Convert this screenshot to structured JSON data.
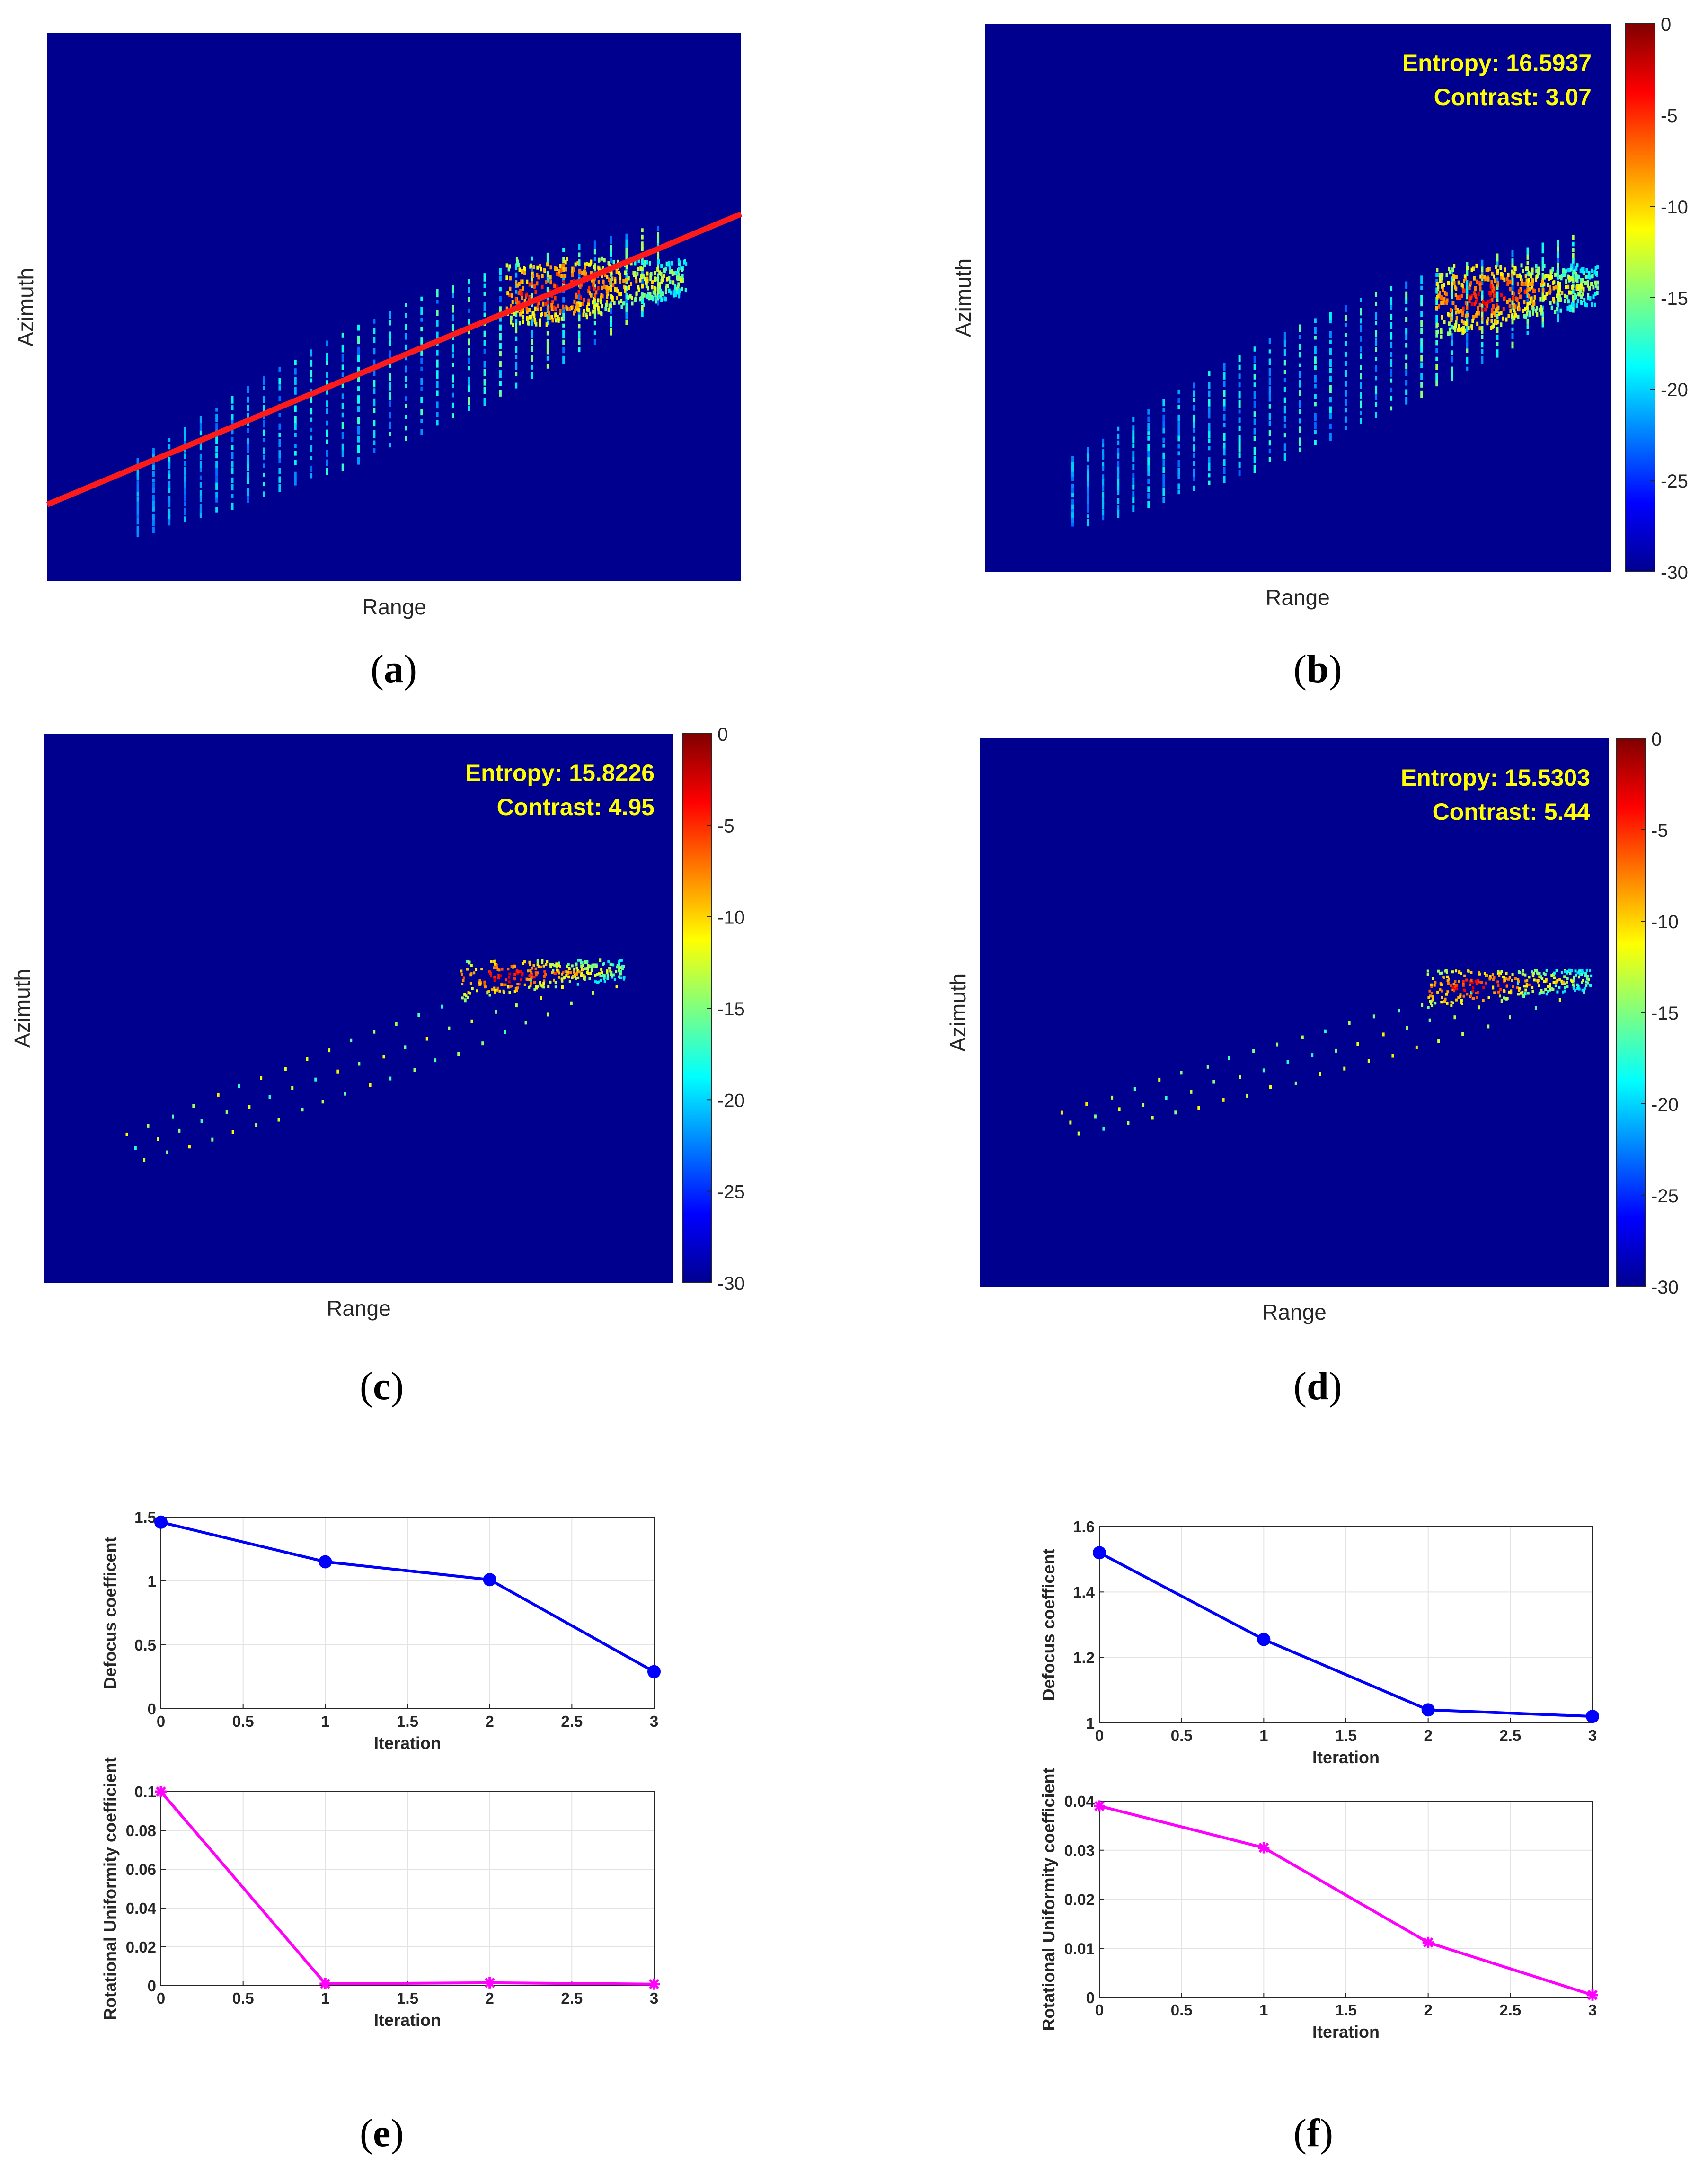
{
  "images": {
    "a": {
      "xlabel": "Range",
      "ylabel": "Azimuth",
      "label": "(a)",
      "label_letter": "a"
    },
    "b": {
      "xlabel": "Range",
      "ylabel": "Azimuth",
      "label": "(b)",
      "label_letter": "b",
      "entropy_text": "Entropy: 16.5937",
      "contrast_text": "Contrast: 3.07"
    },
    "c": {
      "xlabel": "Range",
      "ylabel": "Azimuth",
      "label": "(c)",
      "label_letter": "c",
      "entropy_text": "Entropy: 15.8226",
      "contrast_text": "Contrast: 4.95"
    },
    "d": {
      "xlabel": "Range",
      "ylabel": "Azimuth",
      "label": "(d)",
      "label_letter": "d",
      "entropy_text": "Entropy: 15.5303",
      "contrast_text": "Contrast: 5.44"
    }
  },
  "colorbar": {
    "ticks": [
      "0",
      "-5",
      "-10",
      "-15",
      "-20",
      "-25",
      "-30"
    ],
    "range": [
      -30,
      0
    ]
  },
  "colors": {
    "image_bg": "#00008f",
    "annot_text": "#ffff00",
    "red_line": "#ff1a1a",
    "blue_series": "#0000ff",
    "magenta_series": "#ff00ff",
    "grid": "#e3e3e3"
  },
  "chart_data": [
    {
      "type": "line",
      "panel": "e",
      "title": "",
      "xlabel": "Iteration",
      "ylabel": "Defocus coefficent",
      "x": [
        0,
        1,
        2,
        3
      ],
      "series": [
        {
          "name": "Defocus coefficent",
          "values": [
            1.46,
            1.15,
            1.01,
            0.29
          ]
        }
      ],
      "xlim": [
        0,
        3
      ],
      "ylim": [
        0,
        1.5
      ],
      "xticks": [
        "0",
        "0.5",
        "1",
        "1.5",
        "2",
        "2.5",
        "3"
      ],
      "yticks": [
        "0",
        "0.5",
        "1",
        "1.5"
      ],
      "grid": true,
      "label": "(e)",
      "label_letter": "e"
    },
    {
      "type": "line",
      "panel": "e",
      "title": "",
      "xlabel": "Iteration",
      "ylabel": "Rotational Uniformity coefficient",
      "x": [
        0,
        1,
        2,
        3
      ],
      "series": [
        {
          "name": "Rotational Uniformity coefficient",
          "values": [
            0.1,
            0.001,
            0.0015,
            0.0008
          ]
        }
      ],
      "xlim": [
        0,
        3
      ],
      "ylim": [
        0,
        0.1
      ],
      "xticks": [
        "0",
        "0.5",
        "1",
        "1.5",
        "2",
        "2.5",
        "3"
      ],
      "yticks": [
        "0",
        "0.02",
        "0.04",
        "0.06",
        "0.08",
        "0.1"
      ],
      "grid": true
    },
    {
      "type": "line",
      "panel": "f",
      "title": "",
      "xlabel": "Iteration",
      "ylabel": "Defocus coefficent",
      "x": [
        0,
        1,
        2,
        3
      ],
      "series": [
        {
          "name": "Defocus coefficent",
          "values": [
            1.52,
            1.255,
            1.04,
            1.02
          ]
        }
      ],
      "xlim": [
        0,
        3
      ],
      "ylim": [
        1,
        1.6
      ],
      "xticks": [
        "0",
        "0.5",
        "1",
        "1.5",
        "2",
        "2.5",
        "3"
      ],
      "yticks": [
        "1",
        "1.2",
        "1.4",
        "1.6"
      ],
      "grid": true,
      "label": "(f)",
      "label_letter": "f"
    },
    {
      "type": "line",
      "panel": "f",
      "title": "",
      "xlabel": "Iteration",
      "ylabel": "Rotational Uniformity coefficient",
      "x": [
        0,
        1,
        2,
        3
      ],
      "series": [
        {
          "name": "Rotational Uniformity coefficient",
          "values": [
            0.039,
            0.0305,
            0.0112,
            0.0005
          ]
        }
      ],
      "xlim": [
        0,
        3
      ],
      "ylim": [
        0,
        0.04
      ],
      "xticks": [
        "0",
        "0.5",
        "1",
        "1.5",
        "2",
        "2.5",
        "3"
      ],
      "yticks": [
        "0",
        "0.01",
        "0.02",
        "0.03",
        "0.04"
      ],
      "grid": true
    }
  ]
}
